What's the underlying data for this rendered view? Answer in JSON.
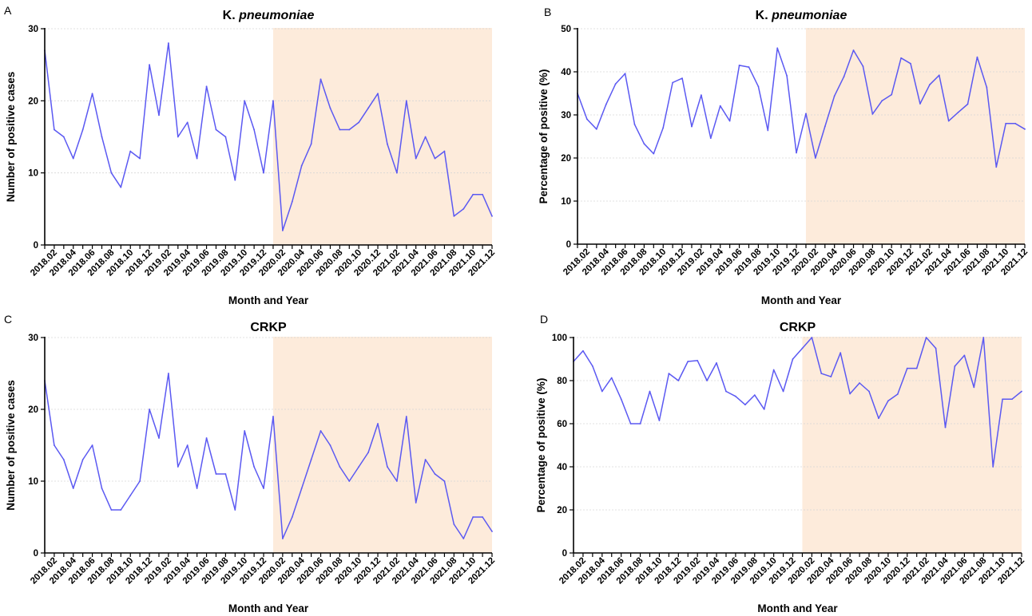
{
  "highlight_color": "#fdebdb",
  "line_color": "#5b59f2",
  "x_labels": [
    "2018.02",
    "2018.04",
    "2018.06",
    "2018.08",
    "2018.10",
    "2018.12",
    "2019.02",
    "2019.04",
    "2019.06",
    "2019.08",
    "2019.10",
    "2019.12",
    "2020.02",
    "2020.04",
    "2020.06",
    "2020.08",
    "2020.10",
    "2020.12",
    "2021.02",
    "2021.04",
    "2021.06",
    "2021.08",
    "2021.10",
    "2021.12"
  ],
  "chart_data": [
    {
      "panel": "A",
      "type": "line",
      "title_plain": "K. ",
      "title_italic": "pneumoniae",
      "xlabel": "Month and Year",
      "ylabel": "Number of positive cases",
      "ylim": [
        0,
        30
      ],
      "yticks": [
        0,
        10,
        20,
        30
      ],
      "grid": true,
      "highlight_from": "2020.01",
      "highlight_to": "2021.12",
      "values": [
        27,
        16,
        15,
        12,
        16,
        21,
        15,
        10,
        8,
        13,
        12,
        25,
        18,
        28,
        15,
        17,
        12,
        22,
        16,
        15,
        9,
        20,
        16,
        10,
        20,
        2,
        6,
        11,
        14,
        23,
        19,
        16,
        16,
        17,
        19,
        21,
        14,
        10,
        20,
        12,
        15,
        12,
        13,
        4,
        5,
        7,
        7,
        4
      ]
    },
    {
      "panel": "B",
      "type": "line",
      "title_plain": "K. ",
      "title_italic": "pneumoniae",
      "xlabel": "Month and Year",
      "ylabel": "Percentage of positive (%)",
      "ylim": [
        0,
        50
      ],
      "yticks": [
        0,
        10,
        20,
        30,
        40,
        50
      ],
      "grid": true,
      "highlight_from": "2020.01",
      "highlight_to": "2021.12",
      "values": [
        35,
        29,
        26.7,
        32.4,
        37.2,
        39.6,
        27.8,
        23.3,
        21,
        27,
        37.5,
        38.5,
        27.3,
        34.6,
        24.6,
        32.1,
        28.6,
        41.5,
        41.1,
        36.6,
        26.4,
        45.5,
        39.1,
        21.2,
        30.3,
        20,
        27.3,
        34.4,
        38.9,
        45,
        41.3,
        30.2,
        33.3,
        34.7,
        43.2,
        41.9,
        32.6,
        37,
        39.2,
        28.6,
        30.6,
        32.5,
        43.4,
        36.4,
        17.9,
        28,
        28,
        26.7
      ]
    },
    {
      "panel": "C",
      "type": "line",
      "title_plain": "CRKP",
      "title_italic": "",
      "xlabel": "Month and Year",
      "ylabel": "Number of positive cases",
      "ylim": [
        0,
        30
      ],
      "yticks": [
        0,
        10,
        20,
        30
      ],
      "grid": true,
      "highlight_from": "2020.01",
      "highlight_to": "2021.12",
      "values": [
        24,
        15,
        13,
        9,
        13,
        15,
        9,
        6,
        6,
        8,
        10,
        20,
        16,
        25,
        12,
        15,
        9,
        16,
        11,
        11,
        6,
        17,
        12,
        9,
        19,
        2,
        5,
        9,
        13,
        17,
        15,
        12,
        10,
        12,
        14,
        18,
        12,
        10,
        19,
        7,
        13,
        11,
        10,
        4,
        2,
        5,
        5,
        3
      ]
    },
    {
      "panel": "D",
      "type": "line",
      "title_plain": "CRKP",
      "title_italic": "",
      "xlabel": "Month and Year",
      "ylabel": "Percentage of positive (%)",
      "ylim": [
        0,
        100
      ],
      "yticks": [
        0,
        20,
        40,
        60,
        80,
        100
      ],
      "grid": true,
      "highlight_from": "2020.01",
      "highlight_to": "2021.12",
      "values": [
        88.9,
        93.8,
        86.7,
        75,
        81.3,
        71.4,
        60,
        60,
        75,
        61.5,
        83.3,
        80,
        88.9,
        89.3,
        80,
        88.2,
        75,
        72.7,
        68.8,
        73.3,
        66.7,
        85,
        75,
        90,
        95,
        100,
        83.3,
        81.8,
        92.9,
        73.9,
        78.9,
        75,
        62.5,
        70.6,
        73.7,
        85.7,
        85.7,
        100,
        95,
        58.3,
        86.7,
        91.7,
        76.9,
        100,
        40,
        71.4,
        71.4,
        75
      ]
    }
  ]
}
